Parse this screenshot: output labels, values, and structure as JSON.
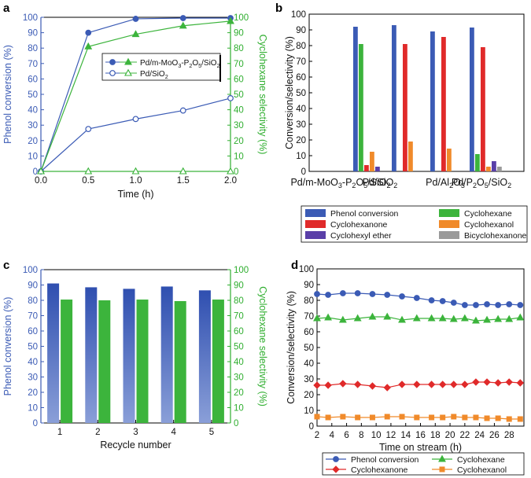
{
  "panel_labels": {
    "a": "a",
    "b": "b",
    "c": "c",
    "d": "d"
  },
  "colors": {
    "blue": "#3b5bb5",
    "green": "#3cb43c",
    "red": "#e02a2a",
    "orange": "#f08a2a",
    "purple": "#5a3fa8",
    "grey": "#9a9a9a",
    "blue_axis": "#3b5bb5",
    "green_axis": "#2fae2f"
  },
  "chart_data": [
    {
      "panel": "a",
      "type": "line",
      "xlabel": "Time (h)",
      "ylabel_left": "Phenol conversion (%)",
      "ylabel_right": "Cyclohexane selectivity (%)",
      "xlim": [
        0,
        2
      ],
      "ylim_left": [
        0,
        100
      ],
      "ylim_right": [
        0,
        100
      ],
      "x": [
        0,
        0.5,
        1.0,
        1.5,
        2.0
      ],
      "xticks": [
        "0.0",
        "0.5",
        "1.0",
        "1.5",
        "2.0"
      ],
      "yticks": [
        "0",
        "10",
        "20",
        "30",
        "40",
        "50",
        "60",
        "70",
        "80",
        "90",
        "100"
      ],
      "legend": [
        {
          "name": "Pd/m-MoO3-P2O5/SiO2",
          "circle": "filled",
          "triangle": "filled"
        },
        {
          "name": "Pd/SiO2",
          "circle": "open",
          "triangle": "open"
        }
      ],
      "series": [
        {
          "name": "Pd/m-MoO3-P2O5/SiO2 conversion",
          "axis": "left",
          "marker": "circle-filled",
          "color": "blue",
          "values": [
            0,
            90,
            99,
            99.5,
            99.5
          ]
        },
        {
          "name": "Pd/m-MoO3-P2O5/SiO2 selectivity",
          "axis": "right",
          "marker": "triangle-filled",
          "color": "green",
          "values": [
            0,
            81,
            89,
            94.5,
            97.5
          ]
        },
        {
          "name": "Pd/SiO2 conversion",
          "axis": "left",
          "marker": "circle-open",
          "color": "blue",
          "values": [
            0,
            27.5,
            34,
            39.5,
            47.5
          ]
        },
        {
          "name": "Pd/SiO2 selectivity",
          "axis": "right",
          "marker": "triangle-open",
          "color": "green",
          "values": [
            0,
            0,
            0,
            0,
            0
          ]
        }
      ]
    },
    {
      "panel": "b",
      "type": "bar",
      "ylabel": "Conversion/selectivity (%)",
      "ylim": [
        0,
        100
      ],
      "yticks": [
        "0",
        "10",
        "20",
        "30",
        "40",
        "50",
        "60",
        "70",
        "80",
        "90",
        "100"
      ],
      "categories": [
        "Pd/m-MoO3-P2O5/SiO2",
        "Pd/SiO2",
        "Pd/Al2O3",
        "Pd/P2O5/SiO2"
      ],
      "series": [
        {
          "name": "Phenol conversion",
          "color": "blue",
          "values": [
            92,
            93,
            89,
            91.5
          ]
        },
        {
          "name": "Cyclohexane",
          "color": "green",
          "values": [
            81,
            0,
            0,
            11
          ]
        },
        {
          "name": "Cyclohexanone",
          "color": "red",
          "values": [
            4,
            81,
            85.5,
            79
          ]
        },
        {
          "name": "Cyclohexanol",
          "color": "orange",
          "values": [
            12.5,
            19,
            14.5,
            3
          ]
        },
        {
          "name": "Cyclohexyl ether",
          "color": "purple",
          "values": [
            3,
            0,
            0,
            6.5
          ]
        },
        {
          "name": "Bicyclohexanone",
          "color": "grey",
          "values": [
            0,
            0,
            0,
            3
          ]
        }
      ]
    },
    {
      "panel": "c",
      "type": "bar",
      "xlabel": "Recycle number",
      "ylabel_left": "Phenol conversion (%)",
      "ylabel_right": "Cyclohexane selectivity (%)",
      "ylim": [
        0,
        100
      ],
      "yticks": [
        "0",
        "10",
        "20",
        "30",
        "40",
        "50",
        "60",
        "70",
        "80",
        "90",
        "100"
      ],
      "categories": [
        "1",
        "2",
        "3",
        "4",
        "5"
      ],
      "series": [
        {
          "name": "Phenol conversion",
          "color": "blue",
          "values": [
            91,
            88.5,
            87.5,
            89,
            86.5
          ]
        },
        {
          "name": "Cyclohexane selectivity",
          "color": "green",
          "values": [
            80.5,
            80,
            80.5,
            79.5,
            80.5
          ]
        }
      ]
    },
    {
      "panel": "d",
      "type": "line",
      "xlabel": "Time on stream (h)",
      "ylabel": "Conversion/selectivity (%)",
      "xlim": [
        2,
        30
      ],
      "ylim": [
        0,
        100
      ],
      "xticks": [
        "2",
        "4",
        "6",
        "8",
        "10",
        "12",
        "14",
        "16",
        "18",
        "20",
        "22",
        "24",
        "26",
        "28"
      ],
      "yticks": [
        "0",
        "10",
        "20",
        "30",
        "40",
        "50",
        "60",
        "70",
        "80",
        "90",
        "100"
      ],
      "x": [
        2,
        3.5,
        5.5,
        7.5,
        9.5,
        11.5,
        13.5,
        15.5,
        17.5,
        19,
        20.5,
        22,
        23.5,
        25,
        26.5,
        28,
        29.5
      ],
      "series": [
        {
          "name": "Phenol conversion",
          "color": "blue",
          "marker": "circle",
          "values": [
            84,
            83.5,
            84.5,
            84.5,
            84,
            83.5,
            82.5,
            81.5,
            80,
            79.5,
            78.5,
            77,
            77,
            77.5,
            77,
            77.5,
            77
          ]
        },
        {
          "name": "Cyclohexane",
          "color": "green",
          "marker": "triangle",
          "values": [
            68.5,
            69,
            67.5,
            68.5,
            69.5,
            69.5,
            67.5,
            68.5,
            68.5,
            68.5,
            68,
            68.5,
            67,
            67.5,
            68,
            68,
            69
          ]
        },
        {
          "name": "Cyclohexanone",
          "color": "red",
          "marker": "diamond",
          "values": [
            26,
            26,
            27,
            26.5,
            25.5,
            24.5,
            26.5,
            26.5,
            26.5,
            26.5,
            26.5,
            26.5,
            28,
            28,
            27.5,
            28,
            27.5
          ]
        },
        {
          "name": "Cyclohexanol",
          "color": "orange",
          "marker": "square",
          "values": [
            6,
            5.5,
            6,
            5.5,
            5.5,
            6,
            6,
            5.5,
            5.5,
            5.5,
            6,
            5.5,
            5.5,
            5,
            5,
            4.5,
            4.5
          ]
        }
      ]
    }
  ]
}
